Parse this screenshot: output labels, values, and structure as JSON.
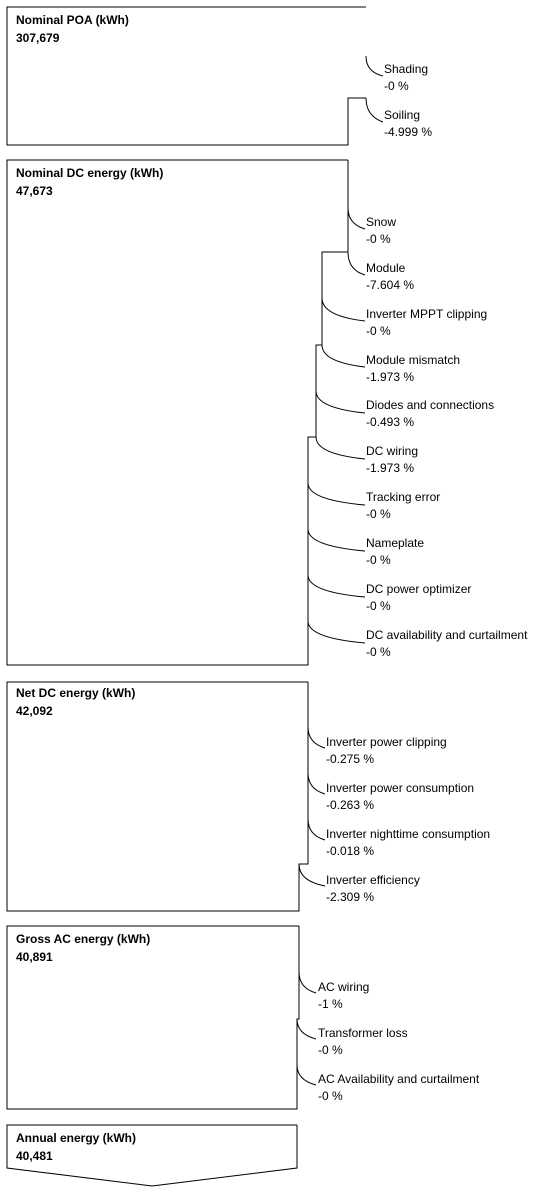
{
  "stages": [
    {
      "title": "Nominal POA (kWh)",
      "value": "307,679",
      "losses": [
        {
          "name": "Shading",
          "pct": "-0 %"
        },
        {
          "name": "Soiling",
          "pct": "-4.999 %"
        }
      ]
    },
    {
      "title": "Nominal DC energy (kWh)",
      "value": "47,673",
      "losses": [
        {
          "name": "Snow",
          "pct": "-0 %"
        },
        {
          "name": "Module",
          "pct": "-7.604 %"
        },
        {
          "name": "Inverter MPPT clipping",
          "pct": "-0 %"
        },
        {
          "name": "Module mismatch",
          "pct": "-1.973 %"
        },
        {
          "name": "Diodes and connections",
          "pct": "-0.493 %"
        },
        {
          "name": "DC wiring",
          "pct": "-1.973 %"
        },
        {
          "name": "Tracking error",
          "pct": "-0 %"
        },
        {
          "name": "Nameplate",
          "pct": "-0 %"
        },
        {
          "name": "DC power optimizer",
          "pct": "-0 %"
        },
        {
          "name": "DC availability and curtailment",
          "pct": "-0 %"
        }
      ]
    },
    {
      "title": "Net DC energy (kWh)",
      "value": "42,092",
      "losses": [
        {
          "name": "Inverter power clipping",
          "pct": "-0.275 %"
        },
        {
          "name": "Inverter power consumption",
          "pct": "-0.263 %"
        },
        {
          "name": "Inverter nighttime consumption",
          "pct": "-0.018 %"
        },
        {
          "name": "Inverter efficiency",
          "pct": "-2.309 %"
        }
      ]
    },
    {
      "title": "Gross AC energy (kWh)",
      "value": "40,891",
      "losses": [
        {
          "name": "AC wiring",
          "pct": "-1 %"
        },
        {
          "name": "Transformer loss",
          "pct": "-0 %"
        },
        {
          "name": "AC Availability and curtailment",
          "pct": "-0 %"
        }
      ]
    },
    {
      "title": "Annual energy (kWh)",
      "value": "40,481",
      "losses": []
    }
  ]
}
